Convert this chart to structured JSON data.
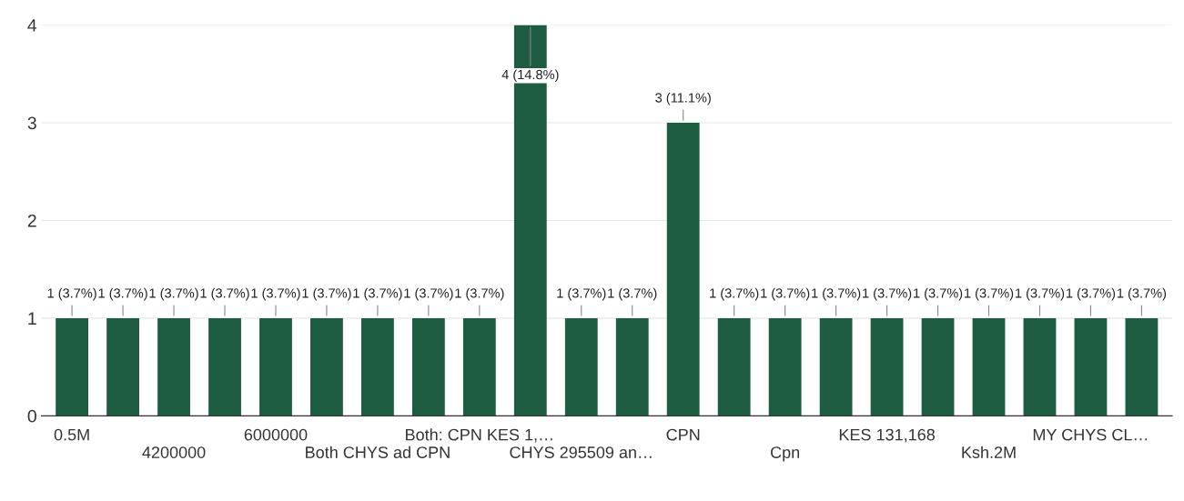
{
  "chart_data": {
    "type": "bar",
    "categories": [
      "0.5M",
      null,
      "4200000",
      null,
      "6000000",
      null,
      "Both CHYS ad CPN",
      null,
      "Both: CPN KES 1,…",
      null,
      "CHYS 295509 an…",
      null,
      "CPN",
      null,
      "Cpn",
      null,
      "KES 131,168",
      null,
      "Ksh.2M",
      null,
      "MY CHYS CL…",
      null
    ],
    "values": [
      1,
      1,
      1,
      1,
      1,
      1,
      1,
      1,
      1,
      4,
      1,
      1,
      3,
      1,
      1,
      1,
      1,
      1,
      1,
      1,
      1,
      1
    ],
    "value_labels": [
      "1 (3.7%)",
      "1 (3.7%)",
      "1 (3.7%)",
      "1 (3.7%)",
      "1 (3.7%)",
      "1 (3.7%)",
      "1 (3.7%)",
      "1 (3.7%)",
      "1 (3.7%)",
      "4 (14.8%)",
      "1 (3.7%)",
      "1 (3.7%)",
      "3 (11.1%)",
      "1 (3.7%)",
      "1 (3.7%)",
      "1 (3.7%)",
      "1 (3.7%)",
      "1 (3.7%)",
      "1 (3.7%)",
      "1 (3.7%)",
      "1 (3.7%)",
      "1 (3.7%)"
    ],
    "color": "#1e5c41",
    "ylim": [
      0,
      4
    ],
    "yticks": [
      0,
      1,
      2,
      3,
      4
    ],
    "grid": "y",
    "legend": false
  }
}
